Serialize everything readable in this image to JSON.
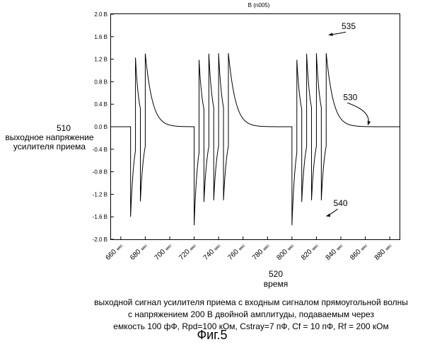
{
  "chart_data": {
    "type": "line",
    "title": "B (n005)",
    "y_axis": {
      "min": -2.0,
      "max": 2.0,
      "ticks": [
        2.0,
        1.6,
        1.2,
        0.8,
        0.4,
        0.0,
        -0.4,
        -0.8,
        -1.2,
        -1.6,
        -2.0
      ],
      "tick_labels": [
        "2.0 В",
        "1.6 В",
        "1.2 В",
        "0.8 В",
        "0.4 В",
        "0.0 В",
        "-0.4 В",
        "-0.8 В",
        "-1.2 В",
        "-1.6 В",
        "-2.0 В"
      ]
    },
    "x_axis": {
      "min": 652,
      "max": 888,
      "ticks": [
        660,
        680,
        700,
        720,
        740,
        760,
        780,
        800,
        820,
        840,
        860,
        880
      ],
      "tick_unit": "мкс"
    },
    "series": [
      {
        "pulses": [
          {
            "t": 668,
            "amplitude": -1.6,
            "tau": 3
          },
          {
            "t": 672,
            "amplitude": 1.65,
            "tau": 3
          },
          {
            "t": 676,
            "amplitude": -1.65,
            "tau": 3
          },
          {
            "t": 680,
            "amplitude": 1.65,
            "tau": 5
          },
          {
            "t": 720,
            "amplitude": -1.75,
            "tau": 3
          },
          {
            "t": 724,
            "amplitude": 1.65,
            "tau": 3
          },
          {
            "t": 728,
            "amplitude": -1.65,
            "tau": 3
          },
          {
            "t": 732,
            "amplitude": 1.65,
            "tau": 3
          },
          {
            "t": 736,
            "amplitude": -1.65,
            "tau": 3
          },
          {
            "t": 740,
            "amplitude": 1.65,
            "tau": 3
          },
          {
            "t": 744,
            "amplitude": -1.65,
            "tau": 3
          },
          {
            "t": 748,
            "amplitude": 1.65,
            "tau": 5
          },
          {
            "t": 800,
            "amplitude": -1.75,
            "tau": 3
          },
          {
            "t": 804,
            "amplitude": 1.65,
            "tau": 3
          },
          {
            "t": 808,
            "amplitude": -1.65,
            "tau": 3
          },
          {
            "t": 812,
            "amplitude": 1.65,
            "tau": 3
          },
          {
            "t": 816,
            "amplitude": -1.65,
            "tau": 3
          },
          {
            "t": 820,
            "amplitude": 1.65,
            "tau": 3
          },
          {
            "t": 824,
            "amplitude": -1.65,
            "tau": 3
          },
          {
            "t": 828,
            "amplitude": 1.65,
            "tau": 5
          }
        ],
        "baseline": 0.0
      }
    ],
    "annotations": [
      {
        "label": "535",
        "target_x": 829,
        "target_y": 1.62
      },
      {
        "label": "530",
        "target_x": 861,
        "target_y": 0.02
      },
      {
        "label": "540",
        "target_x": 827,
        "target_y": -1.6
      }
    ],
    "ylabel_number": "510",
    "ylabel_lines": [
      "выходное напряжение",
      "усилителя приема"
    ],
    "xlabel_number": "520",
    "xlabel": "время",
    "grid": false,
    "legend": "none"
  },
  "caption_lines": [
    "выходной сигнал усилителя приема с входным сигналом прямоугольной волны",
    "с напряжением 200 В двойной амплитуды, подаваемым через",
    "емкость 100 фФ, Rpd=100 кОм, Cstray=7 пФ, Cf = 10 пФ, Rf = 200 кОм"
  ],
  "figure_label": "Фиг.5"
}
